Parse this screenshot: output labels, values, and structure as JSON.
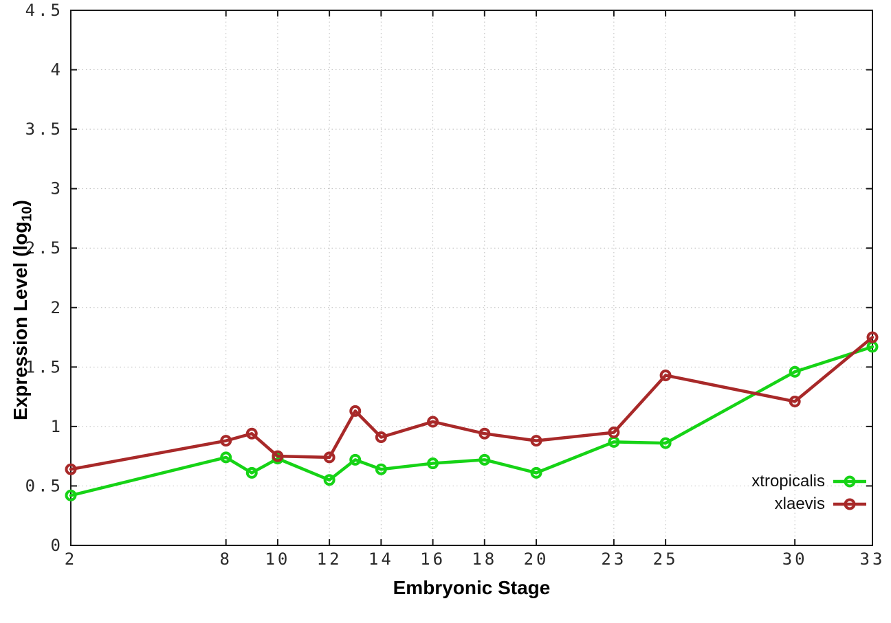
{
  "chart_data": {
    "type": "line",
    "title": "",
    "xlabel": "Embryonic Stage",
    "ylabel": {
      "pre": "Expression Level (log",
      "sub": "10",
      "post": ")"
    },
    "x": [
      2,
      8,
      9,
      10,
      12,
      13,
      14,
      16,
      18,
      20,
      23,
      25,
      30,
      33
    ],
    "series": [
      {
        "name": "xtropicalis",
        "color": "#16d316",
        "values": [
          0.42,
          0.74,
          0.61,
          0.73,
          0.55,
          0.72,
          0.64,
          0.69,
          0.72,
          0.61,
          0.87,
          0.86,
          1.46,
          1.67
        ]
      },
      {
        "name": "xlaevis",
        "color": "#a82929",
        "values": [
          0.64,
          0.88,
          0.94,
          0.75,
          0.74,
          1.13,
          0.91,
          1.04,
          0.94,
          0.88,
          0.95,
          1.43,
          1.21,
          1.75
        ]
      }
    ],
    "xticks": [
      2,
      8,
      10,
      12,
      14,
      16,
      18,
      20,
      23,
      25,
      30,
      33
    ],
    "yticks": [
      0,
      0.5,
      1,
      1.5,
      2,
      2.5,
      3,
      3.5,
      4,
      4.5
    ],
    "xlim": [
      2,
      33
    ],
    "ylim": [
      0,
      4.5
    ],
    "grid": true,
    "legend_position": "bottom-right",
    "colors": {
      "axis": "#1a1a1a",
      "grid": "#bdbdbd",
      "tick_text": "#2a2a2a"
    }
  }
}
